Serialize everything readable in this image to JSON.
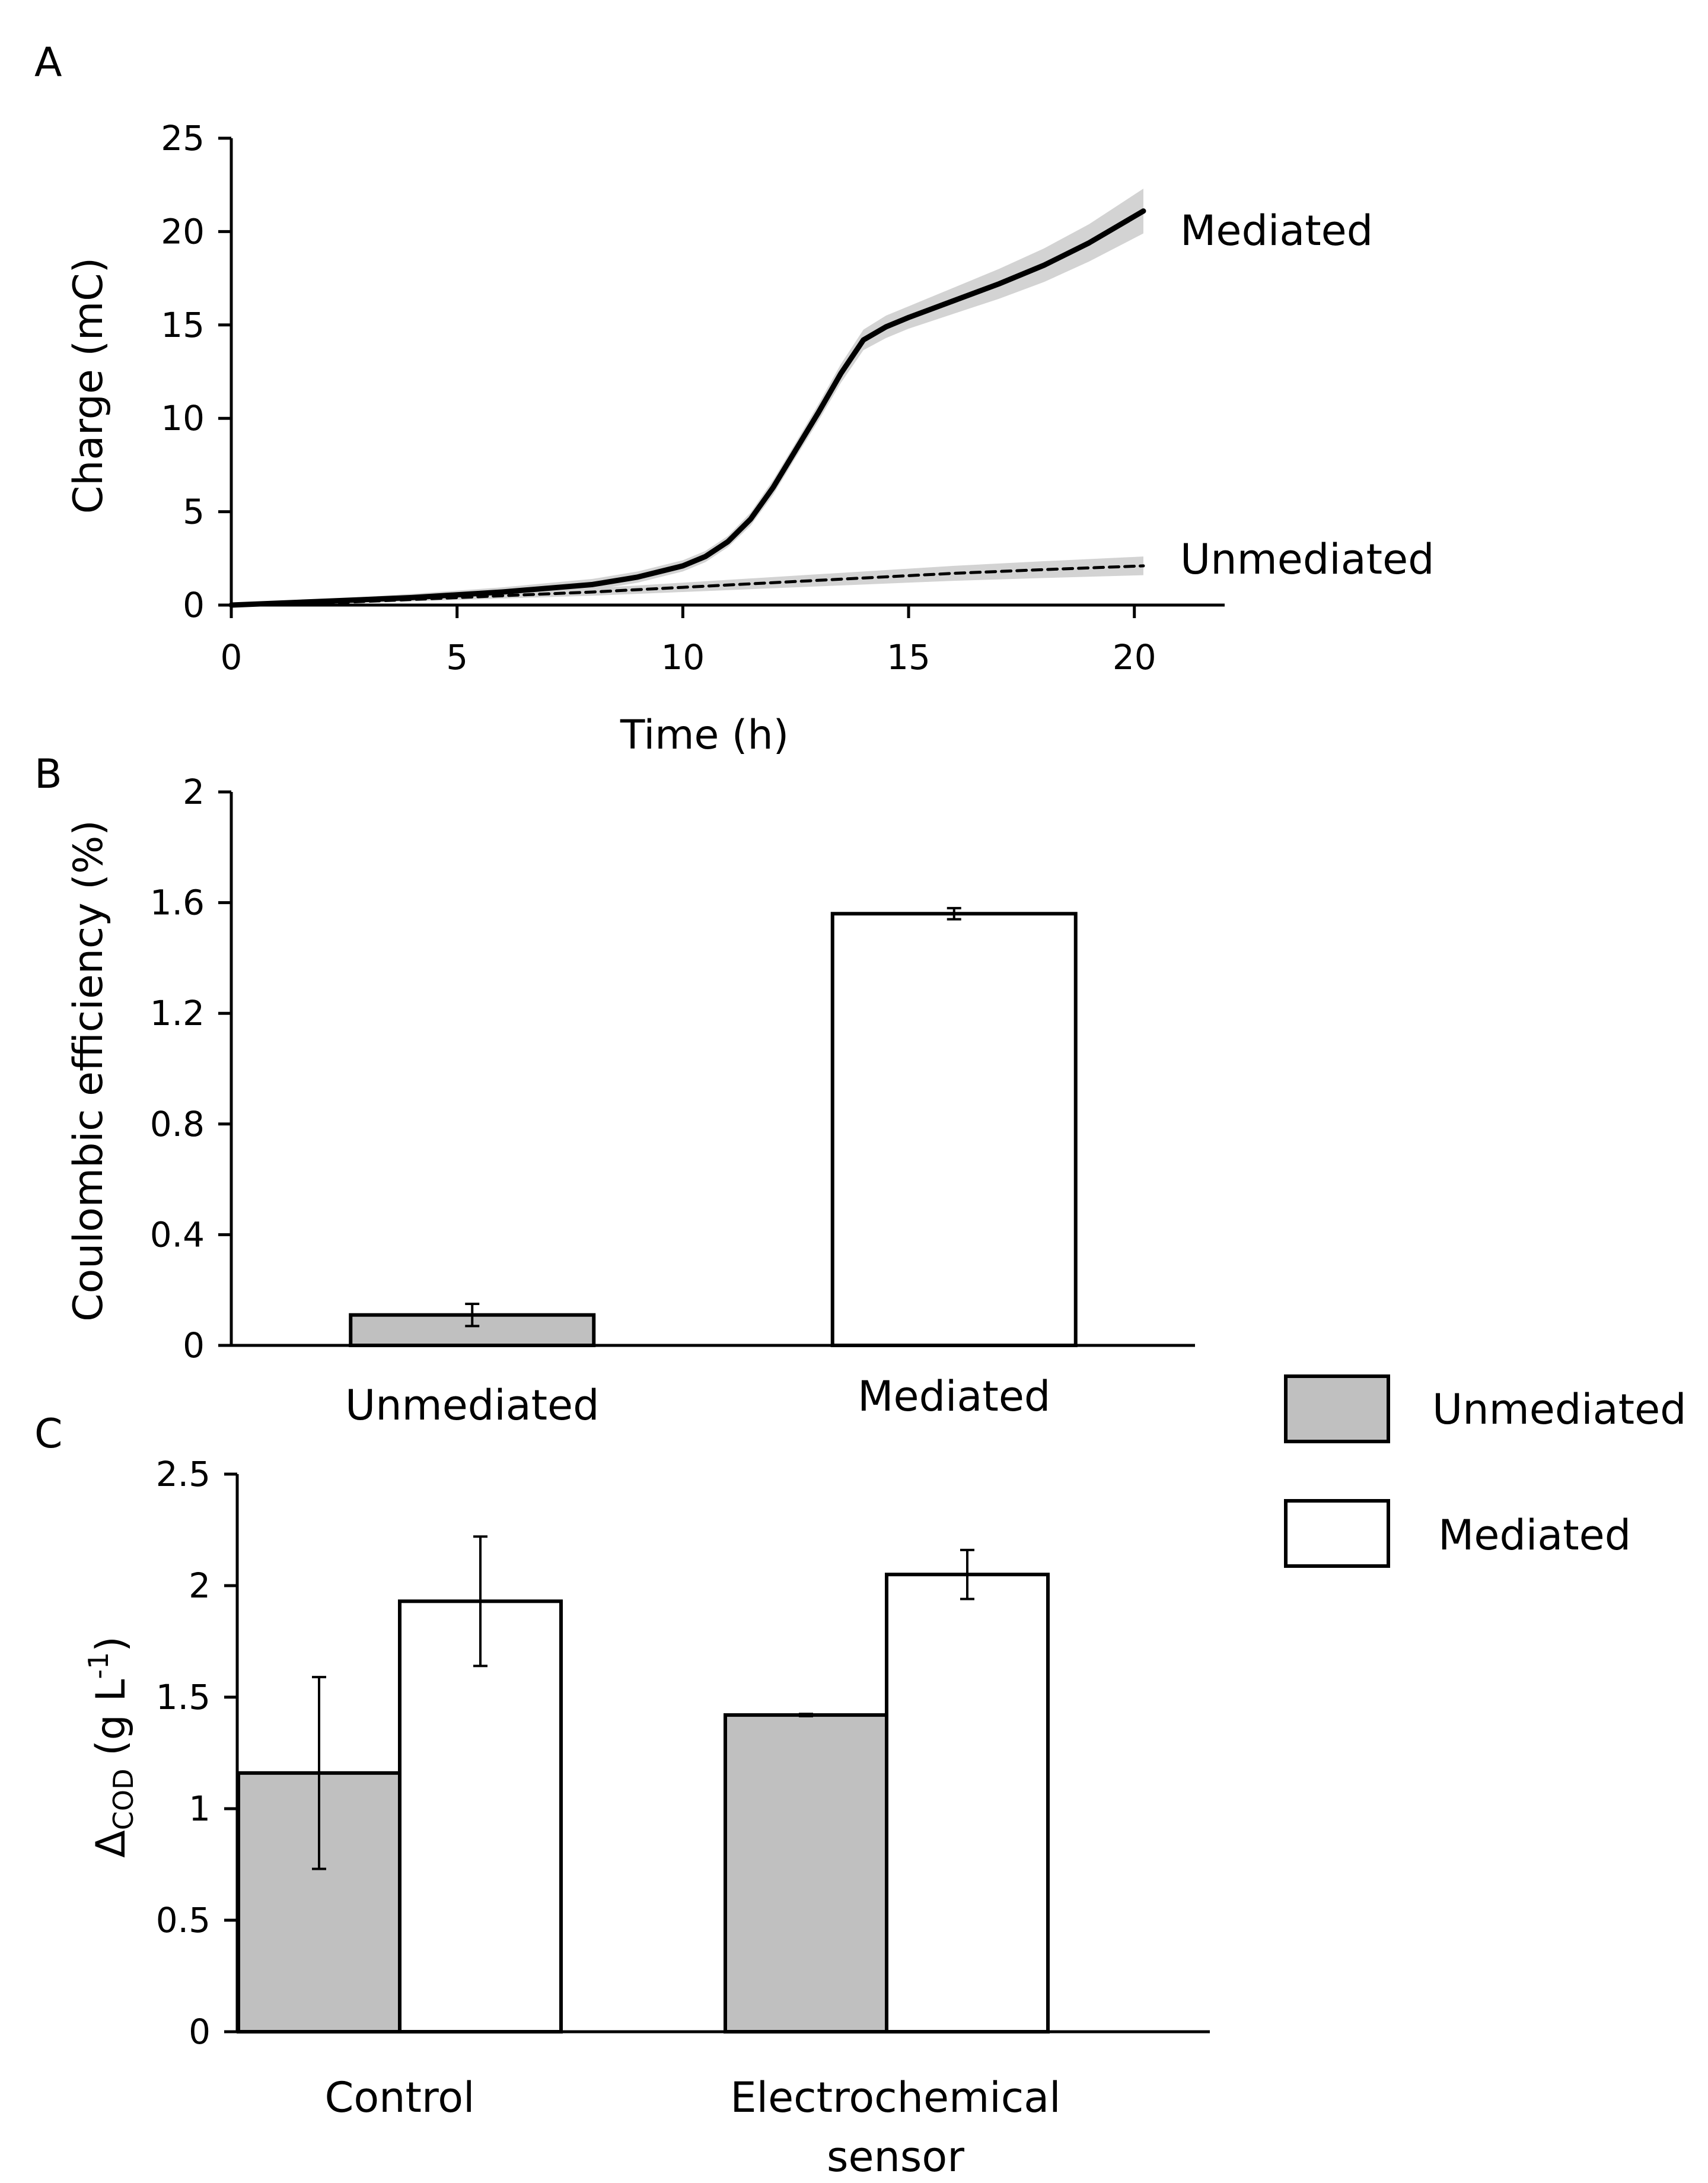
{
  "colors": {
    "unmediated_fill": "#c0c0c0",
    "mediated_fill": "#ffffff",
    "line": "#000000",
    "band": "#d3d3d3"
  },
  "legend": {
    "items": [
      {
        "label": "Unmediated",
        "color": "#c0c0c0"
      },
      {
        "label": "Mediated",
        "color": "#ffffff"
      }
    ]
  },
  "chart_data": [
    {
      "panel": "A",
      "type": "line",
      "xlabel": "Time (h)",
      "ylabel": "Charge (mC)",
      "xlim": [
        0,
        22
      ],
      "ylim": [
        0,
        25
      ],
      "xticks": [
        0,
        5,
        10,
        15,
        20
      ],
      "yticks": [
        0,
        5,
        10,
        15,
        20,
        25
      ],
      "grid": false,
      "series": [
        {
          "name": "Mediated",
          "style": "solid",
          "x": [
            0,
            2,
            4,
            6,
            8,
            9,
            10,
            10.5,
            11,
            11.5,
            12,
            12.5,
            13,
            13.5,
            14,
            14.5,
            15,
            16,
            17,
            18,
            19,
            20.2
          ],
          "y": [
            0,
            0.2,
            0.4,
            0.7,
            1.1,
            1.5,
            2.1,
            2.6,
            3.4,
            4.6,
            6.3,
            8.3,
            10.3,
            12.4,
            14.2,
            14.9,
            15.4,
            16.3,
            17.2,
            18.2,
            19.4,
            21.1
          ],
          "band": [
            0,
            0.1,
            0.2,
            0.25,
            0.3,
            0.3,
            0.3,
            0.3,
            0.3,
            0.35,
            0.4,
            0.4,
            0.45,
            0.5,
            0.55,
            0.6,
            0.6,
            0.7,
            0.8,
            0.9,
            1.0,
            1.2
          ]
        },
        {
          "name": "Unmediated",
          "style": "dashed",
          "x": [
            0,
            2,
            4,
            6,
            8,
            10,
            12,
            14,
            16,
            18,
            20.2
          ],
          "y": [
            0,
            0.1,
            0.3,
            0.5,
            0.7,
            0.95,
            1.2,
            1.45,
            1.7,
            1.9,
            2.1
          ],
          "band": [
            0,
            0.05,
            0.1,
            0.15,
            0.2,
            0.25,
            0.3,
            0.35,
            0.4,
            0.45,
            0.5
          ]
        }
      ]
    },
    {
      "panel": "B",
      "type": "bar",
      "xlabel": "",
      "ylabel": "Coulombic efficiency (%)",
      "ylim": [
        0,
        2
      ],
      "yticks": [
        "0",
        "0.4",
        "0.8",
        "1.2",
        "1.6",
        "2"
      ],
      "categories": [
        "Unmediated",
        "Mediated"
      ],
      "values": [
        0.11,
        1.56
      ],
      "errors": [
        0.04,
        0.02
      ],
      "colors": [
        "#c0c0c0",
        "#ffffff"
      ]
    },
    {
      "panel": "C",
      "type": "bar",
      "xlabel": "",
      "ylabel": "ΔCOD (g L-1)",
      "ylabel_parts": {
        "main": "Δ",
        "sub": "COD",
        "mid": " (g L",
        "sup": "-1",
        "end": ")"
      },
      "ylim": [
        0,
        2.5
      ],
      "yticks": [
        "0",
        "0.5",
        "1",
        "1.5",
        "2",
        "2.5"
      ],
      "categories": [
        "Control",
        "Electrochemical sensor"
      ],
      "category_lines": [
        [
          "Control"
        ],
        [
          "Electrochemical",
          "sensor"
        ]
      ],
      "series": [
        {
          "name": "Unmediated",
          "values": [
            1.16,
            1.42
          ],
          "errors": [
            0.43,
            0.005
          ]
        },
        {
          "name": "Mediated",
          "values": [
            1.93,
            2.05
          ],
          "errors": [
            0.29,
            0.11
          ]
        }
      ]
    }
  ]
}
